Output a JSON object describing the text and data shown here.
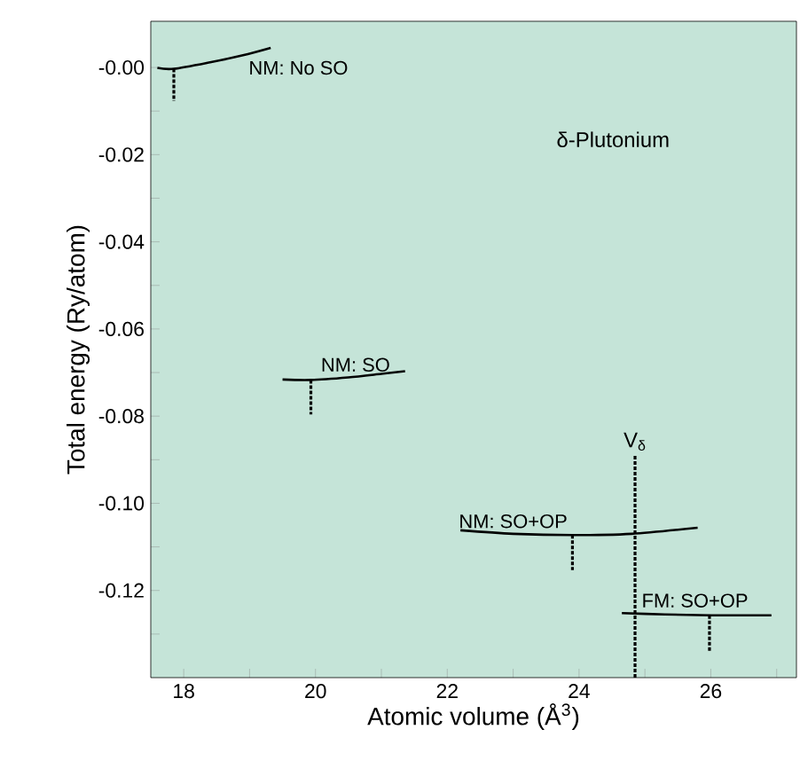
{
  "chart_data": {
    "type": "line",
    "xlabel": "Atomic volume (Å$^{3}$)",
    "ylabel": "Total energy (Ry/atom)",
    "xlim": [
      17.5,
      27.3
    ],
    "ylim": [
      -0.14,
      0.0106
    ],
    "xticks": [
      18,
      {
        "value": 19,
        "label": null
      },
      20,
      {
        "value": 21,
        "label": null
      },
      22,
      {
        "value": 23,
        "label": null
      },
      24,
      {
        "value": 25,
        "label": null
      },
      26,
      {
        "value": 27,
        "label": null
      }
    ],
    "yticks": [
      {
        "value": 0,
        "label": "-0.00"
      },
      {
        "value": -0.01,
        "label": null
      },
      -0.02,
      {
        "value": -0.03,
        "label": null
      },
      -0.04,
      {
        "value": -0.05,
        "label": null
      },
      -0.06,
      {
        "value": -0.07,
        "label": null
      },
      -0.08,
      {
        "value": -0.09,
        "label": null
      },
      {
        "value": -0.1,
        "label": "-0.10"
      },
      {
        "value": -0.11,
        "label": null
      },
      -0.12,
      {
        "value": -0.13,
        "label": null
      }
    ],
    "grid": false,
    "marker": "none",
    "annotations": [
      "δ-Plutonium"
    ],
    "ref_lines": [
      {
        "axis": "x",
        "value": 24.85,
        "label": "V$_{δ}$",
        "color": "#000000",
        "line_style": "dashed"
      }
    ],
    "series": [
      {
        "name": "NM: No SO",
        "color": "#000000",
        "x": [
          17.6,
          17.85,
          18.4,
          18.9,
          19.32
        ],
        "values": [
          -0.0001,
          -0.0003,
          0.0012,
          0.0028,
          0.0045
        ]
      },
      {
        "name": "NM: SO",
        "color": "#000000",
        "x": [
          19.5,
          19.93,
          20.5,
          21.0,
          21.36
        ],
        "values": [
          -0.0716,
          -0.0717,
          -0.0711,
          -0.0703,
          -0.0697
        ]
      },
      {
        "name": "NM: SO+OP",
        "color": "#000000",
        "x": [
          22.2,
          23.0,
          23.9,
          24.8,
          25.8
        ],
        "values": [
          -0.1062,
          -0.107,
          -0.1073,
          -0.107,
          -0.1056
        ]
      },
      {
        "name": "FM: SO+OP",
        "color": "#000000",
        "x": [
          24.65,
          25.3,
          26.0,
          26.5,
          26.92
        ],
        "values": [
          -0.1252,
          -0.1255,
          -0.1257,
          -0.1257,
          -0.1257
        ]
      },
      {
        "color": "#000000",
        "line_style": "dashed",
        "x": [
          17.85,
          17.85
        ],
        "values": [
          -0.0003,
          -0.0077
        ]
      },
      {
        "color": "#000000",
        "line_style": "dashed",
        "x": [
          19.93,
          19.93
        ],
        "values": [
          -0.0717,
          -0.0796
        ]
      },
      {
        "color": "#000000",
        "line_style": "dashed",
        "x": [
          23.9,
          23.9
        ],
        "values": [
          -0.1073,
          -0.1153
        ]
      },
      {
        "color": "#000000",
        "line_style": "dashed",
        "x": [
          25.98,
          25.98
        ],
        "values": [
          -0.1257,
          -0.1342
        ]
      }
    ]
  }
}
